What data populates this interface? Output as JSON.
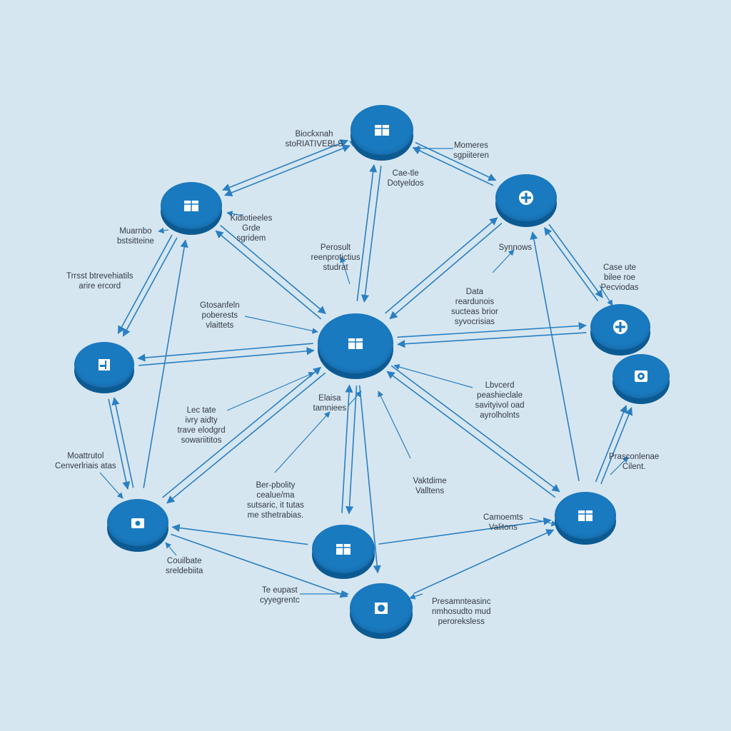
{
  "nodes": [
    {
      "id": "top",
      "icon": "box-icon"
    },
    {
      "id": "upper-right",
      "icon": "plus-icon"
    },
    {
      "id": "upper-left",
      "icon": "box-icon"
    },
    {
      "id": "center",
      "icon": "box-icon"
    },
    {
      "id": "right",
      "icon": "plus-icon"
    },
    {
      "id": "far-right",
      "icon": "target-icon"
    },
    {
      "id": "left",
      "icon": "flag-icon"
    },
    {
      "id": "lower-left",
      "icon": "lock-icon"
    },
    {
      "id": "bottom-middle",
      "icon": "box-icon"
    },
    {
      "id": "lower-right",
      "icon": "box-icon"
    },
    {
      "id": "bottom",
      "icon": "record-icon"
    }
  ],
  "labels": [
    {
      "id": "blockchain",
      "lines": [
        "Biocƙxnah",
        "stoRIATIVEBLS"
      ]
    },
    {
      "id": "momeres",
      "lines": [
        "Momeres",
        "sgpiiteren"
      ]
    },
    {
      "id": "caetle",
      "lines": [
        "Cae-tle",
        "Dotyeldos"
      ]
    },
    {
      "id": "kidiotieeles",
      "lines": [
        "Kidiotieeles",
        "Grde",
        "sgridem"
      ]
    },
    {
      "id": "muarnbo",
      "lines": [
        "Muarnbo",
        "bstsitteine"
      ]
    },
    {
      "id": "trust",
      "lines": [
        "Trrsst btrevehiatils",
        "arire ercord"
      ]
    },
    {
      "id": "perosult",
      "lines": [
        "Perosult",
        "reenprotictius",
        "studrat"
      ]
    },
    {
      "id": "synnows",
      "lines": [
        "Synnows"
      ]
    },
    {
      "id": "casete",
      "lines": [
        "Case ute",
        "bilee roe",
        "Pecviodas"
      ]
    },
    {
      "id": "data",
      "lines": [
        "Data",
        "reardunois",
        "sucteas brior",
        "syvocrisias"
      ]
    },
    {
      "id": "gtosanfeln",
      "lines": [
        "Gtosanfeln",
        "poberests",
        "vlaittets"
      ]
    },
    {
      "id": "lbvcerd",
      "lines": [
        "Lbvcerd",
        "peashieclale",
        "savityivol oad",
        "ayrolholnts"
      ]
    },
    {
      "id": "elaisa",
      "lines": [
        "Elaisa",
        "tamniees"
      ]
    },
    {
      "id": "lectate",
      "lines": [
        "Lec tate",
        "ivry aidty",
        "trave elodgrd",
        "sowariititos"
      ]
    },
    {
      "id": "moattrutol",
      "lines": [
        "Moattrutol",
        "Cenverlriais atas"
      ]
    },
    {
      "id": "berpolity",
      "lines": [
        "Ber-pbolity",
        "cealue/ma",
        "sutsaric, it tutas",
        "me sthetrabias."
      ]
    },
    {
      "id": "vaktdime",
      "lines": [
        "Vaktdime",
        "Valltens"
      ]
    },
    {
      "id": "prasconlenae",
      "lines": [
        "Prasconlenae",
        "Cilent."
      ]
    },
    {
      "id": "camoemts",
      "lines": [
        "Camoemts",
        "Valitons"
      ]
    },
    {
      "id": "couilbate",
      "lines": [
        "Couilbate",
        "sreldebiita"
      ]
    },
    {
      "id": "expast",
      "lines": [
        "Te eupast",
        "cyyegrentc"
      ]
    },
    {
      "id": "presamm",
      "lines": [
        "Presamnteasinc",
        "nmhosudto mud",
        "peroreksless"
      ]
    }
  ],
  "colors": {
    "background": "#d6e6f0",
    "node_face": "#1a7ac0",
    "node_side": "#0c5a92",
    "edge": "#2a7fc2",
    "label": "#333b44"
  }
}
